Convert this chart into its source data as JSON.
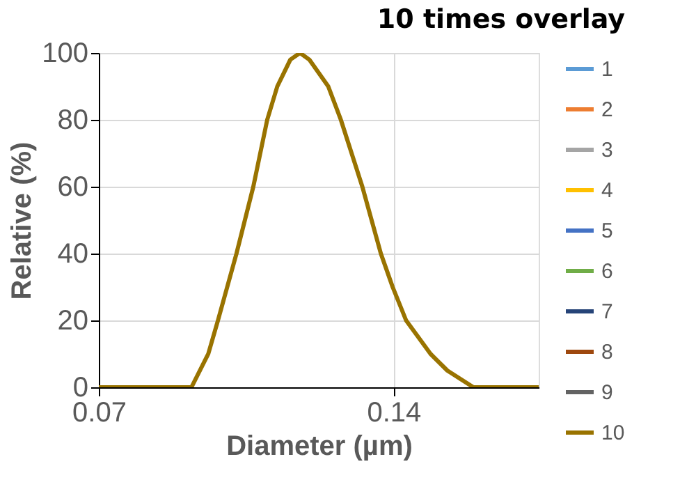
{
  "chart_data": {
    "type": "line",
    "title": "10 times overlay",
    "xlabel": "Diameter (µm)",
    "ylabel": "Relative (%)",
    "x": [
      0.07,
      0.092,
      0.096,
      0.0983,
      0.1027,
      0.1067,
      0.11,
      0.1124,
      0.1155,
      0.1178,
      0.12,
      0.1245,
      0.1275,
      0.1326,
      0.137,
      0.1398,
      0.143,
      0.1488,
      0.1528,
      0.159,
      0.1745
    ],
    "series": [
      {
        "name": "1",
        "color": "#5b9bd5",
        "values": [
          null,
          null,
          null,
          null,
          null,
          null,
          null,
          null,
          null,
          null,
          null,
          null,
          null,
          null,
          null,
          null,
          null,
          null,
          null,
          null,
          null
        ]
      },
      {
        "name": "2",
        "color": "#ed7d31",
        "values": [
          null,
          null,
          null,
          null,
          null,
          null,
          null,
          null,
          null,
          null,
          null,
          null,
          null,
          null,
          null,
          null,
          null,
          null,
          null,
          null,
          null
        ]
      },
      {
        "name": "3",
        "color": "#a5a5a5",
        "values": [
          null,
          null,
          null,
          null,
          null,
          null,
          null,
          null,
          null,
          null,
          null,
          null,
          null,
          null,
          null,
          null,
          null,
          null,
          null,
          null,
          null
        ]
      },
      {
        "name": "4",
        "color": "#ffc000",
        "values": [
          null,
          null,
          null,
          null,
          null,
          null,
          null,
          null,
          null,
          null,
          null,
          null,
          null,
          null,
          null,
          null,
          null,
          null,
          null,
          null,
          null
        ]
      },
      {
        "name": "5",
        "color": "#4472c4",
        "values": [
          null,
          null,
          null,
          null,
          null,
          null,
          null,
          null,
          null,
          null,
          null,
          null,
          null,
          null,
          null,
          null,
          null,
          null,
          null,
          null,
          null
        ]
      },
      {
        "name": "6",
        "color": "#70ad47",
        "values": [
          null,
          null,
          null,
          null,
          null,
          null,
          null,
          null,
          null,
          null,
          null,
          null,
          null,
          null,
          null,
          null,
          null,
          null,
          null,
          null,
          null
        ]
      },
      {
        "name": "7",
        "color": "#264478",
        "values": [
          null,
          null,
          null,
          null,
          null,
          null,
          null,
          null,
          null,
          null,
          null,
          null,
          null,
          null,
          null,
          null,
          null,
          null,
          null,
          null,
          null
        ]
      },
      {
        "name": "8",
        "color": "#9e480e",
        "values": [
          null,
          null,
          null,
          null,
          null,
          null,
          null,
          null,
          null,
          null,
          null,
          null,
          null,
          null,
          null,
          null,
          null,
          null,
          null,
          null,
          null
        ]
      },
      {
        "name": "9",
        "color": "#636363",
        "values": [
          null,
          null,
          null,
          null,
          null,
          null,
          null,
          null,
          null,
          null,
          null,
          null,
          null,
          null,
          null,
          null,
          null,
          null,
          null,
          null,
          null
        ]
      },
      {
        "name": "10",
        "color": "#997300",
        "values": [
          0,
          0,
          10,
          20,
          40,
          60,
          80,
          90,
          98,
          100,
          98,
          90,
          80,
          60,
          40,
          30,
          20,
          10,
          5,
          0,
          0
        ]
      }
    ],
    "xlim": [
      0.07,
      0.1745
    ],
    "xticks": [
      0.07,
      0.14
    ],
    "ylim": [
      0,
      100
    ],
    "yticks": [
      0,
      20,
      40,
      60,
      80,
      100
    ],
    "grid": true,
    "legend": "right",
    "marker": "none",
    "line_style": "solid"
  }
}
